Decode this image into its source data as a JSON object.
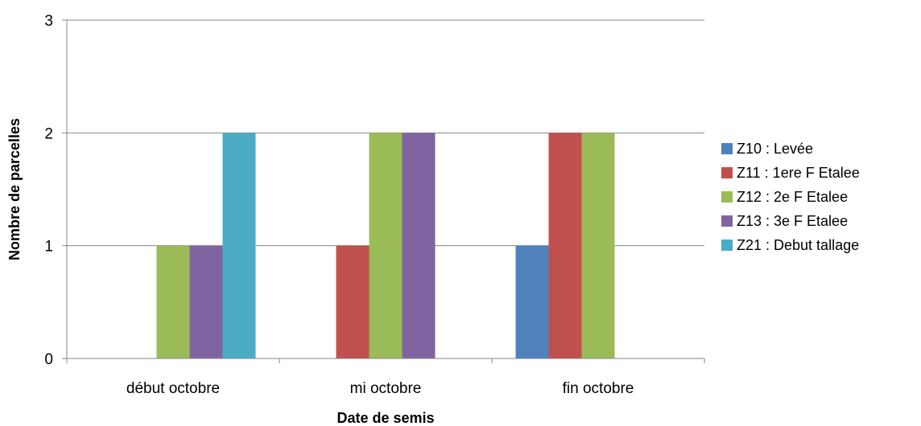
{
  "chart_data": {
    "type": "bar",
    "title": "",
    "xlabel": "Date de semis",
    "ylabel": "Nombre de parcelles",
    "categories": [
      "début octobre",
      "mi octobre",
      "fin octobre"
    ],
    "ylim": [
      0,
      3
    ],
    "yticks": [
      "0",
      "1",
      "2",
      "3"
    ],
    "grid": true,
    "legend_position": "right",
    "series": [
      {
        "name": "Z10 : Levée",
        "color": "#4f81bd",
        "values": [
          0,
          0,
          1
        ]
      },
      {
        "name": "Z11 : 1ere F Etalee",
        "color": "#c0504d",
        "values": [
          0,
          1,
          2
        ]
      },
      {
        "name": "Z12 : 2e F Etalee",
        "color": "#9bbb59",
        "values": [
          1,
          2,
          2
        ]
      },
      {
        "name": "Z13 : 3e F Etalee",
        "color": "#8064a2",
        "values": [
          1,
          2,
          0
        ]
      },
      {
        "name": "Z21 : Debut tallage",
        "color": "#4bacc6",
        "values": [
          2,
          0,
          0
        ]
      }
    ]
  }
}
